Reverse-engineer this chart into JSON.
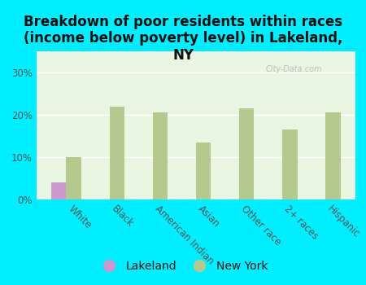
{
  "title": "Breakdown of poor residents within races\n(income below poverty level) in Lakeland,\nNY",
  "categories": [
    "White",
    "Black",
    "American Indian",
    "Asian",
    "Other race",
    "2+ races",
    "Hispanic"
  ],
  "lakeland_values": [
    4.0,
    0,
    0,
    0,
    0,
    0,
    0
  ],
  "newyork_values": [
    10.0,
    22.0,
    20.5,
    13.5,
    21.5,
    16.5,
    20.5
  ],
  "lakeland_color": "#cc99cc",
  "newyork_color": "#b5c98e",
  "background_color": "#00eeff",
  "plot_bg_color": "#e8f5e0",
  "ylim": [
    0,
    35
  ],
  "yticks": [
    0,
    10,
    20,
    30
  ],
  "ytick_labels": [
    "0%",
    "10%",
    "20%",
    "30%"
  ],
  "bar_width": 0.35,
  "title_fontsize": 12,
  "tick_fontsize": 8.5,
  "legend_fontsize": 10,
  "watermark": "City-Data.com"
}
